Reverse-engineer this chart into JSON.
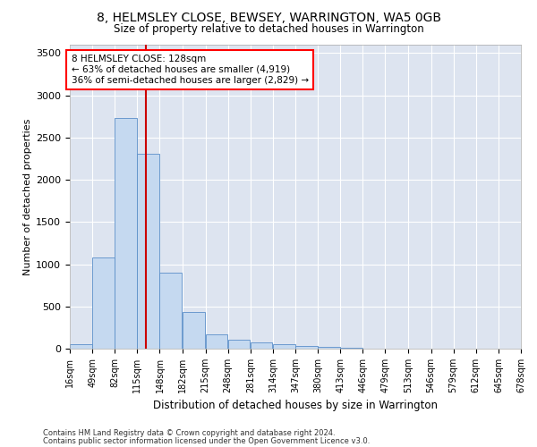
{
  "title": "8, HELMSLEY CLOSE, BEWSEY, WARRINGTON, WA5 0GB",
  "subtitle": "Size of property relative to detached houses in Warrington",
  "xlabel": "Distribution of detached houses by size in Warrington",
  "ylabel": "Number of detached properties",
  "bar_color": "#c5d9f0",
  "bar_edge_color": "#5b8fc9",
  "background_color": "#dde4f0",
  "annotation_text": "8 HELMSLEY CLOSE: 128sqm\n← 63% of detached houses are smaller (4,919)\n36% of semi-detached houses are larger (2,829) →",
  "vline_x": 128,
  "vline_color": "#cc0000",
  "bins": [
    16,
    49,
    82,
    115,
    148,
    182,
    215,
    248,
    281,
    314,
    347,
    380,
    413,
    446,
    479,
    513,
    546,
    579,
    612,
    645,
    678
  ],
  "bin_labels": [
    "16sqm",
    "49sqm",
    "82sqm",
    "115sqm",
    "148sqm",
    "182sqm",
    "215sqm",
    "248sqm",
    "281sqm",
    "314sqm",
    "347sqm",
    "380sqm",
    "413sqm",
    "446sqm",
    "479sqm",
    "513sqm",
    "546sqm",
    "579sqm",
    "612sqm",
    "645sqm",
    "678sqm"
  ],
  "bar_heights": [
    50,
    1080,
    2730,
    2310,
    900,
    430,
    170,
    110,
    70,
    50,
    30,
    20,
    10,
    5,
    3,
    2,
    1,
    1,
    1,
    1
  ],
  "ylim": [
    0,
    3600
  ],
  "yticks": [
    0,
    500,
    1000,
    1500,
    2000,
    2500,
    3000,
    3500
  ],
  "footer1": "Contains HM Land Registry data © Crown copyright and database right 2024.",
  "footer2": "Contains public sector information licensed under the Open Government Licence v3.0."
}
